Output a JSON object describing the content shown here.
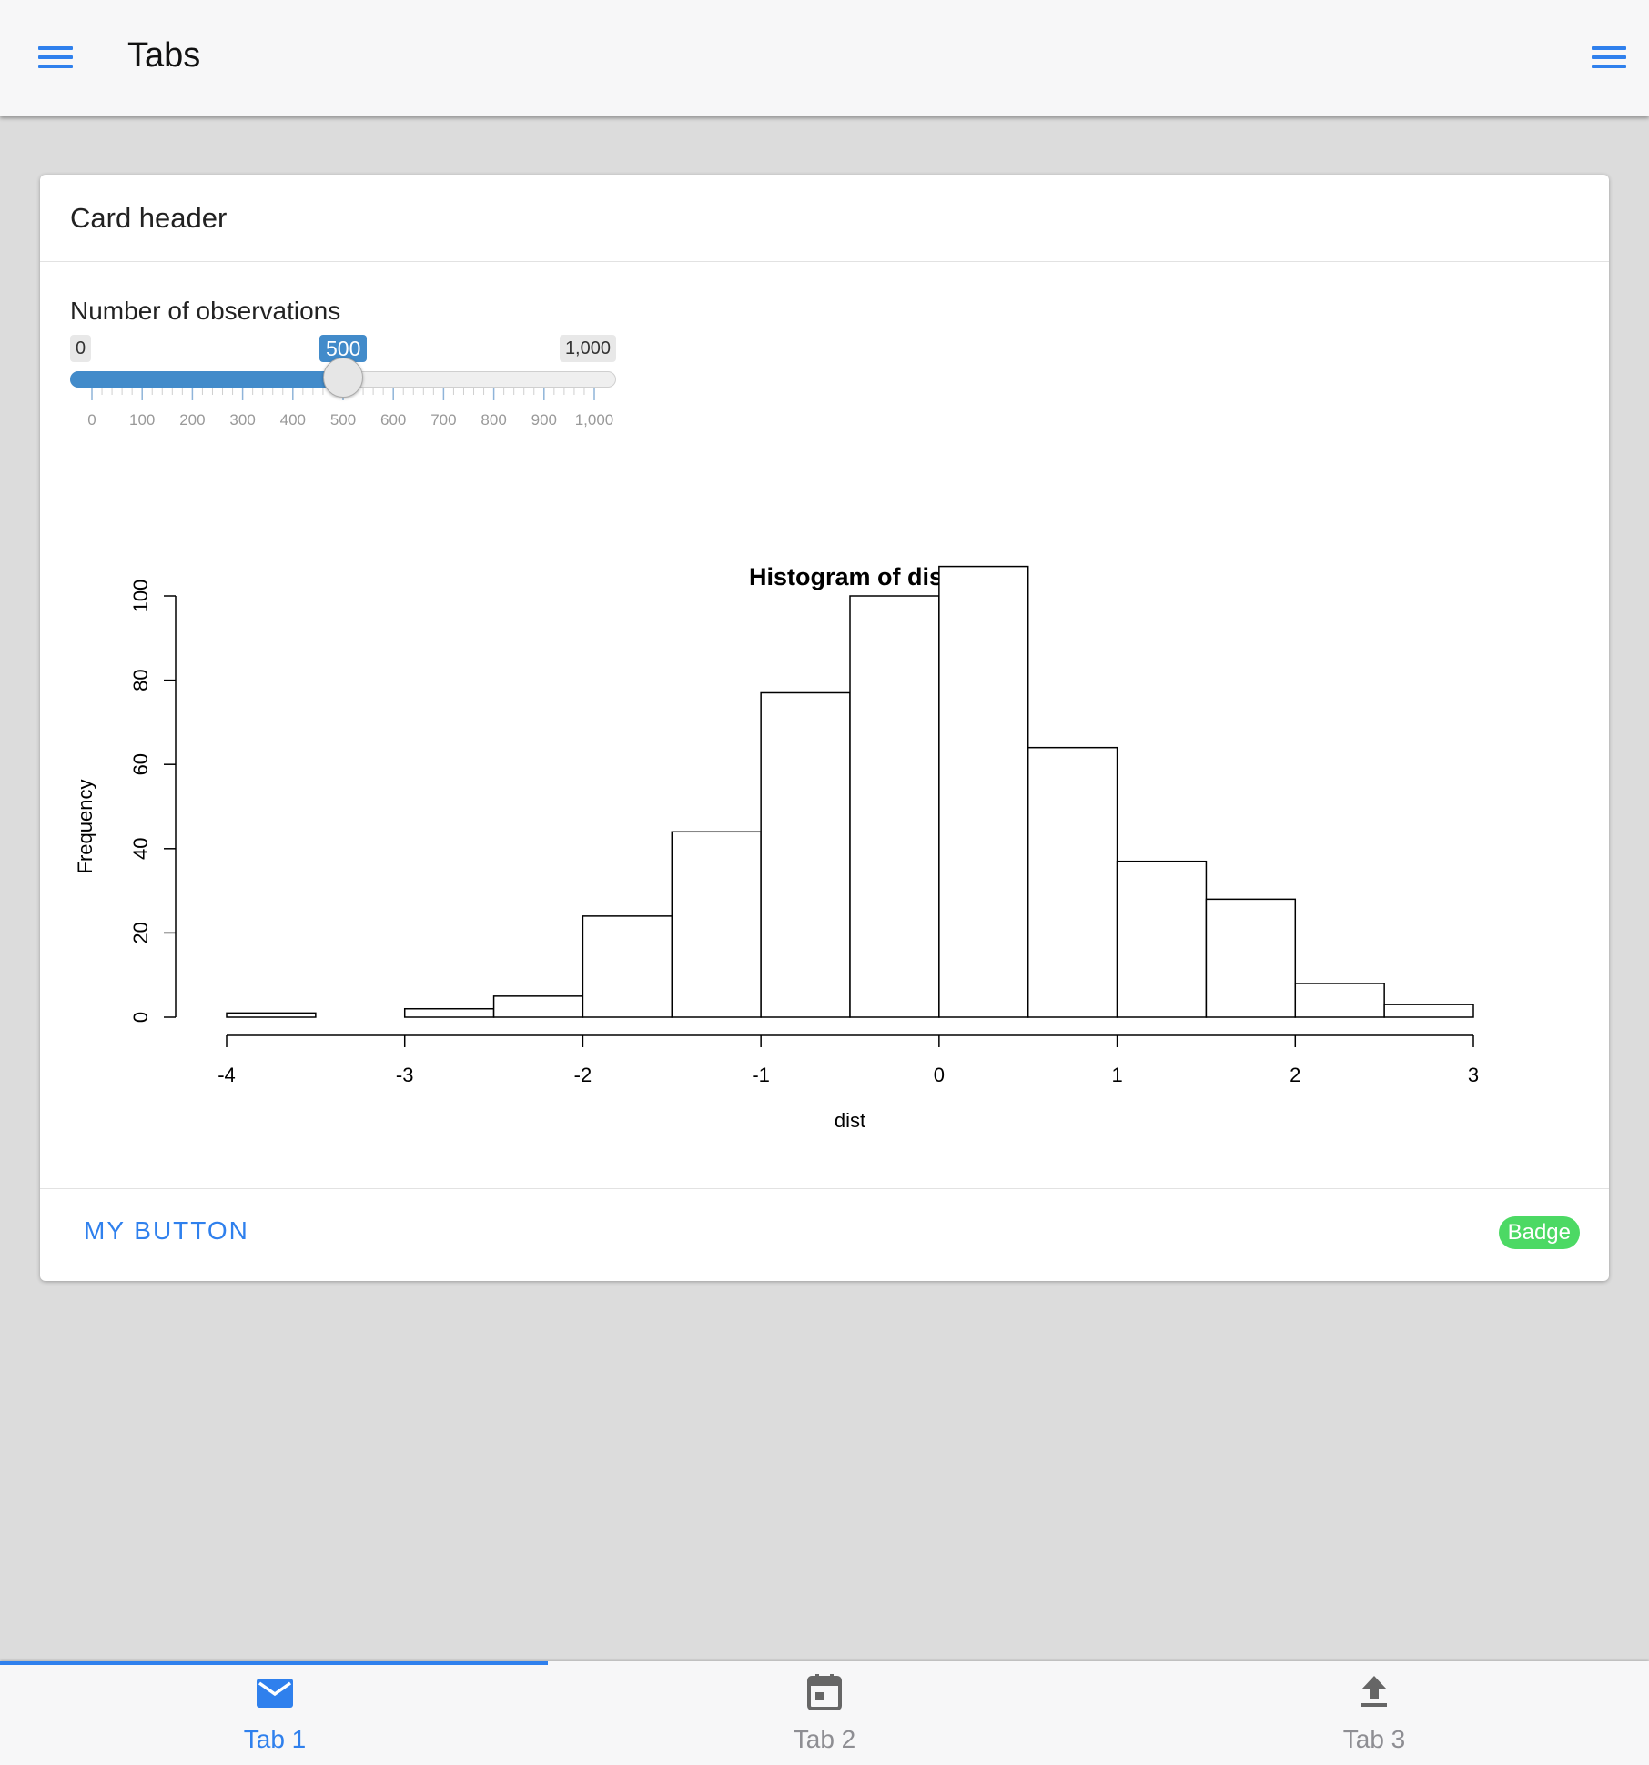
{
  "navbar": {
    "title": "Tabs",
    "left_icon": "menu-icon",
    "right_icon": "menu-icon"
  },
  "card": {
    "header": "Card header",
    "slider": {
      "label": "Number of observations",
      "min": 0,
      "max": 1000,
      "value": 500,
      "min_label": "0",
      "max_label": "1,000",
      "value_label": "500",
      "grid_labels": [
        "0",
        "100",
        "200",
        "300",
        "400",
        "500",
        "600",
        "700",
        "800",
        "900",
        "1,000"
      ]
    },
    "footer": {
      "button_label": "MY BUTTON",
      "badge_label": "Badge"
    }
  },
  "chart_data": {
    "type": "bar",
    "title": "Histogram of dist",
    "xlabel": "dist",
    "ylabel": "Frequency",
    "bin_edges": [
      -4,
      -3.5,
      -3,
      -2.5,
      -2,
      -1.5,
      -1,
      -0.5,
      0,
      0.5,
      1,
      1.5,
      2,
      2.5,
      3
    ],
    "values": [
      1,
      0,
      2,
      5,
      24,
      44,
      77,
      100,
      107,
      64,
      37,
      28,
      8,
      3
    ],
    "xlim": [
      -4,
      3
    ],
    "ylim": [
      0,
      100
    ],
    "xticks": [
      "-4",
      "-3",
      "-2",
      "-1",
      "0",
      "1",
      "2",
      "3"
    ],
    "yticks": [
      "0",
      "20",
      "40",
      "60",
      "80",
      "100"
    ],
    "grid": false,
    "colors": {
      "bar_fill": "#ffffff",
      "bar_stroke": "#000000"
    }
  },
  "tabs": [
    {
      "label": "Tab 1",
      "icon": "mail-icon",
      "active": true
    },
    {
      "label": "Tab 2",
      "icon": "calendar-icon",
      "active": false
    },
    {
      "label": "Tab 3",
      "icon": "upload-icon",
      "active": false
    }
  ],
  "colors": {
    "accent": "#2f80ed",
    "slider": "#428bca",
    "badge": "#4cd964",
    "background": "#dcdcdc"
  }
}
